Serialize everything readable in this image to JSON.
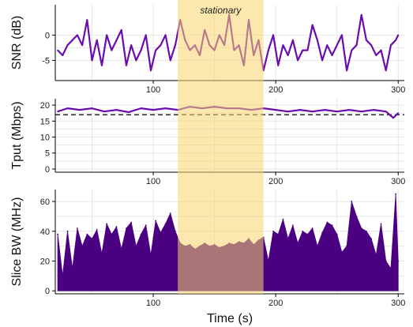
{
  "chart_data": [
    {
      "type": "line",
      "ylabel": "SNR (dB)",
      "xlabel": "",
      "xlim": [
        20,
        305
      ],
      "ylim": [
        -9,
        6
      ],
      "x_ticks": [
        100,
        200,
        300
      ],
      "y_ticks": [
        -5,
        0
      ],
      "grid": true,
      "series_color": "#6a0dad",
      "series": [
        {
          "x": [
            22,
            26,
            30,
            34,
            38,
            42,
            46,
            50,
            54,
            58,
            62,
            66,
            70,
            74,
            78,
            82,
            86,
            90,
            94,
            98,
            102,
            106,
            110,
            114,
            118,
            122,
            126,
            130,
            134,
            138,
            142,
            146,
            150,
            154,
            158,
            162,
            166,
            170,
            174,
            178,
            182,
            186,
            190,
            194,
            198,
            202,
            206,
            210,
            214,
            218,
            222,
            226,
            230,
            234,
            238,
            242,
            246,
            250,
            254,
            258,
            262,
            266,
            270,
            274,
            278,
            282,
            286,
            290,
            294,
            298,
            300
          ],
          "y": [
            -3,
            -4,
            -2,
            -1,
            0,
            -2,
            3,
            -5,
            -1,
            -6,
            0,
            -3,
            -1,
            1,
            -6,
            -2,
            -5,
            -3,
            0,
            -7,
            -3,
            -2,
            0,
            -5,
            -2,
            3,
            -1,
            -3,
            -2,
            -4,
            1,
            -2,
            -3,
            0,
            -2,
            4,
            -3,
            -2,
            -6,
            3,
            -4,
            -1,
            -7,
            -3,
            0,
            -6,
            -2,
            -4,
            -1,
            -5,
            -3,
            -3,
            2,
            -1,
            -5,
            -2,
            -4,
            -2,
            0,
            -7,
            -3,
            -2,
            4,
            -1,
            -2,
            -4,
            -3,
            -7,
            -2,
            -1,
            0
          ]
        }
      ]
    },
    {
      "type": "line",
      "ylabel": "Tput (Mbps)",
      "xlabel": "",
      "xlim": [
        20,
        305
      ],
      "ylim": [
        -1,
        22
      ],
      "x_ticks": [
        100,
        200,
        300
      ],
      "y_ticks": [
        0,
        5,
        10,
        15,
        20
      ],
      "grid": true,
      "reference_line_y": 17,
      "series_color": "#6a0dad",
      "series": [
        {
          "x": [
            22,
            30,
            40,
            50,
            60,
            70,
            80,
            90,
            100,
            110,
            120,
            130,
            140,
            150,
            160,
            170,
            180,
            190,
            200,
            210,
            220,
            230,
            240,
            250,
            260,
            270,
            280,
            290,
            296,
            300
          ],
          "y": [
            18,
            19,
            18.5,
            19,
            18,
            18.5,
            17.8,
            19,
            18.5,
            19,
            18.5,
            19.5,
            19,
            19.5,
            19,
            19,
            18.5,
            19,
            18.5,
            18,
            18.5,
            18,
            18.5,
            18,
            18.5,
            18,
            18.5,
            18,
            16,
            17.5
          ]
        }
      ]
    },
    {
      "type": "area",
      "ylabel": "Slice BW (MHz)",
      "xlabel": "Time (s)",
      "xlim": [
        20,
        305
      ],
      "ylim": [
        -2,
        68
      ],
      "x_ticks": [
        100,
        200,
        300
      ],
      "y_ticks": [
        0,
        20,
        40,
        60
      ],
      "grid": true,
      "series_color": "#4b0082",
      "series": [
        {
          "x": [
            22,
            26,
            30,
            34,
            38,
            42,
            46,
            50,
            54,
            58,
            62,
            66,
            70,
            74,
            78,
            82,
            86,
            90,
            94,
            98,
            102,
            106,
            110,
            114,
            118,
            122,
            126,
            130,
            134,
            138,
            142,
            146,
            150,
            154,
            158,
            162,
            166,
            170,
            174,
            178,
            182,
            186,
            190,
            194,
            198,
            202,
            206,
            210,
            214,
            218,
            222,
            226,
            230,
            234,
            238,
            242,
            246,
            250,
            254,
            258,
            262,
            266,
            270,
            274,
            278,
            282,
            286,
            290,
            294,
            298,
            300
          ],
          "y": [
            38,
            10,
            40,
            15,
            42,
            30,
            38,
            35,
            41,
            25,
            45,
            38,
            43,
            28,
            42,
            46,
            30,
            38,
            44,
            24,
            47,
            39,
            45,
            52,
            40,
            32,
            30,
            31,
            28,
            30,
            32,
            30,
            31,
            29,
            30,
            32,
            31,
            33,
            32,
            35,
            31,
            34,
            36,
            20,
            40,
            38,
            48,
            35,
            44,
            32,
            40,
            38,
            42,
            30,
            39,
            46,
            44,
            38,
            26,
            30,
            60,
            50,
            42,
            40,
            35,
            24,
            45,
            20,
            15,
            65,
            20
          ]
        }
      ]
    }
  ],
  "highlight": {
    "x_start": 120,
    "x_end": 190,
    "label": "stationary",
    "color": "#f9d56e"
  }
}
